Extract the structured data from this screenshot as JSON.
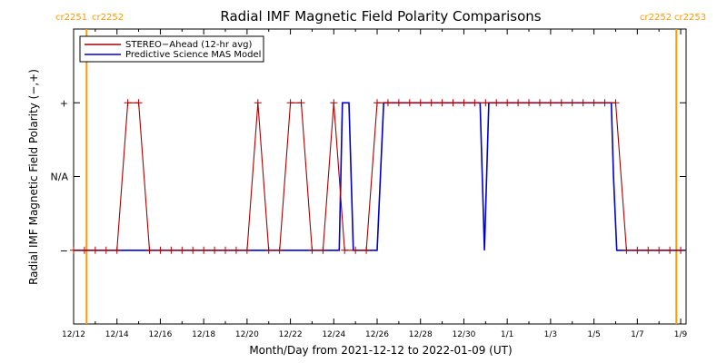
{
  "chart_data": {
    "type": "line",
    "title": "Radial IMF Magnetic Field Polarity Comparisons",
    "xlabel": "Month/Day from 2021-12-12 to 2022-01-09 (UT)",
    "ylabel": "Radial IMF Magnetic Field Polarity (−,+)",
    "xlim": [
      0,
      28.25
    ],
    "ylim": [
      -2,
      2
    ],
    "x_ticks": [
      {
        "x": 0,
        "label": "12/12"
      },
      {
        "x": 2,
        "label": "12/14"
      },
      {
        "x": 4,
        "label": "12/16"
      },
      {
        "x": 6,
        "label": "12/18"
      },
      {
        "x": 8,
        "label": "12/20"
      },
      {
        "x": 10,
        "label": "12/22"
      },
      {
        "x": 12,
        "label": "12/24"
      },
      {
        "x": 14,
        "label": "12/26"
      },
      {
        "x": 16,
        "label": "12/28"
      },
      {
        "x": 18,
        "label": "12/30"
      },
      {
        "x": 20,
        "label": "1/1"
      },
      {
        "x": 22,
        "label": "1/3"
      },
      {
        "x": 24,
        "label": "1/5"
      },
      {
        "x": 26,
        "label": "1/7"
      },
      {
        "x": 28,
        "label": "1/9"
      }
    ],
    "y_ticks": [
      {
        "y": 1,
        "label": "+"
      },
      {
        "y": 0,
        "label": "N/A"
      },
      {
        "y": -1,
        "label": "−"
      }
    ],
    "carrington_markers": [
      {
        "x": 0.6,
        "label_left": "cr2251",
        "label_right": "cr2252"
      },
      {
        "x": 27.8,
        "label_left": "cr2252",
        "label_right": "cr2253"
      }
    ],
    "legend_position": "top-left",
    "series": [
      {
        "name": "STEREO−Ahead (12-hr avg)",
        "color": "#aa0000",
        "markers": true,
        "points": [
          [
            0,
            -1
          ],
          [
            0.5,
            -1
          ],
          [
            1,
            -1
          ],
          [
            1.5,
            -1
          ],
          [
            2,
            -1
          ],
          [
            2.5,
            1
          ],
          [
            3,
            1
          ],
          [
            3.5,
            -1
          ],
          [
            4,
            -1
          ],
          [
            4.5,
            -1
          ],
          [
            5,
            -1
          ],
          [
            5.5,
            -1
          ],
          [
            6,
            -1
          ],
          [
            6.5,
            -1
          ],
          [
            7,
            -1
          ],
          [
            7.5,
            -1
          ],
          [
            8,
            -1
          ],
          [
            8.5,
            1
          ],
          [
            9,
            -1
          ],
          [
            9.5,
            -1
          ],
          [
            10,
            1
          ],
          [
            10.5,
            1
          ],
          [
            11,
            -1
          ],
          [
            11.5,
            -1
          ],
          [
            12,
            1
          ],
          [
            12.5,
            -1
          ],
          [
            13,
            -1
          ],
          [
            13.5,
            -1
          ],
          [
            14,
            1
          ],
          [
            14.5,
            1
          ],
          [
            15,
            1
          ],
          [
            15.5,
            1
          ],
          [
            16,
            1
          ],
          [
            16.5,
            1
          ],
          [
            17,
            1
          ],
          [
            17.5,
            1
          ],
          [
            18,
            1
          ],
          [
            18.5,
            1
          ],
          [
            19,
            1
          ],
          [
            19.5,
            1
          ],
          [
            20,
            1
          ],
          [
            20.5,
            1
          ],
          [
            21,
            1
          ],
          [
            21.5,
            1
          ],
          [
            22,
            1
          ],
          [
            22.5,
            1
          ],
          [
            23,
            1
          ],
          [
            23.5,
            1
          ],
          [
            24,
            1
          ],
          [
            24.5,
            1
          ],
          [
            25,
            1
          ],
          [
            25.5,
            -1
          ],
          [
            26,
            -1
          ],
          [
            26.5,
            -1
          ],
          [
            27,
            -1
          ],
          [
            27.5,
            -1
          ],
          [
            28,
            -1
          ]
        ]
      },
      {
        "name": "Predictive Science MAS Model",
        "color": "#0000cc",
        "markers": false,
        "points": [
          [
            0,
            -1
          ],
          [
            12.25,
            -1
          ],
          [
            12.4,
            1
          ],
          [
            12.7,
            1
          ],
          [
            12.9,
            -1
          ],
          [
            13.75,
            -1
          ],
          [
            13.75,
            -1
          ],
          [
            14,
            -1
          ],
          [
            14.3,
            1
          ],
          [
            15,
            1
          ],
          [
            18.75,
            1
          ],
          [
            18.85,
            0
          ],
          [
            18.95,
            -1
          ],
          [
            19.05,
            0
          ],
          [
            19.15,
            1
          ],
          [
            19.25,
            1
          ],
          [
            24.8,
            1
          ],
          [
            24.9,
            0
          ],
          [
            25.05,
            -1
          ],
          [
            28.2,
            -1
          ]
        ]
      }
    ]
  }
}
